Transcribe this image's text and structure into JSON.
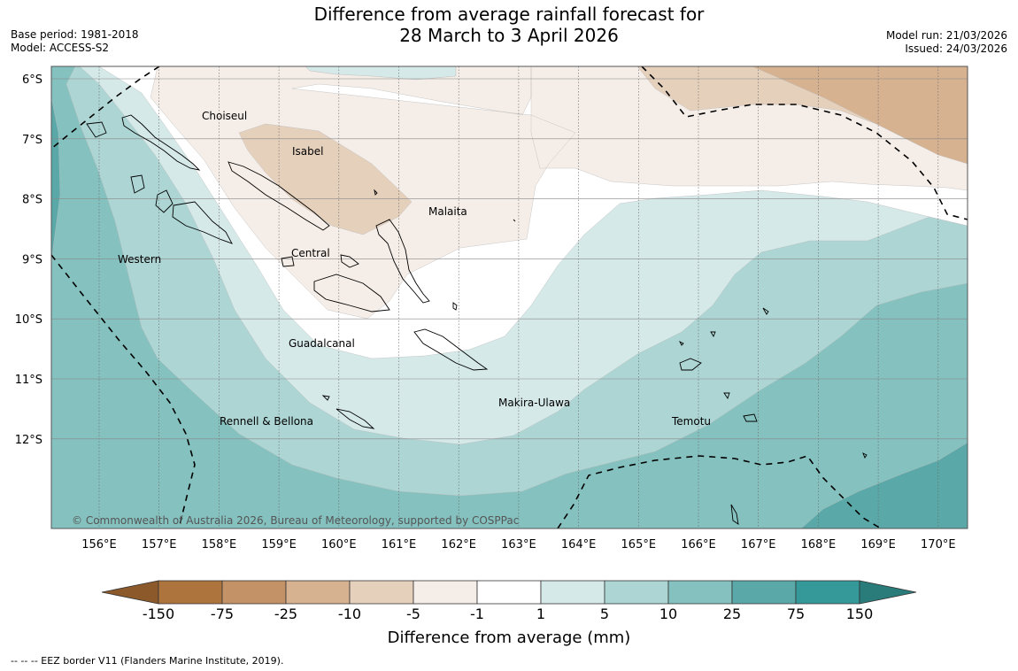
{
  "title_line1": "Difference from average rainfall forecast for",
  "title_line2": "28 March to 3 April 2026",
  "meta_left": [
    "Base period: 1981-2018",
    "Model: ACCESS-S2"
  ],
  "meta_right": [
    "Model run: 21/03/2026",
    "Issued: 24/03/2026"
  ],
  "lat_labels": [
    "6°S",
    "7°S",
    "8°S",
    "9°S",
    "10°S",
    "11°S",
    "12°S"
  ],
  "lon_labels": [
    "156°E",
    "157°E",
    "158°E",
    "159°E",
    "160°E",
    "161°E",
    "162°E",
    "163°E",
    "164°E",
    "165°E",
    "166°E",
    "167°E",
    "168°E",
    "169°E",
    "170°E"
  ],
  "regions": [
    {
      "name": "Choiseul"
    },
    {
      "name": "Isabel"
    },
    {
      "name": "Malaita"
    },
    {
      "name": "Western"
    },
    {
      "name": "Central"
    },
    {
      "name": "Guadalcanal"
    },
    {
      "name": "Makira-Ulawa"
    },
    {
      "name": "Temotu"
    },
    {
      "name": "Rennell & Bellona"
    }
  ],
  "copyright": "© Commonwealth of Australia 2026, Bureau of Meteorology, supported by COSPPac",
  "colorbar": {
    "ticks": [
      "-150",
      "-75",
      "-25",
      "-10",
      "-5",
      "-1",
      "1",
      "5",
      "10",
      "25",
      "75",
      "150"
    ],
    "colors": {
      "lt_neg150": "#8c5a2a",
      "neg150_75": "#ae743e",
      "neg75_25": "#c39367",
      "neg25_10": "#d6b291",
      "neg10_5": "#e5d0bc",
      "neg5_1": "#f5ede7",
      "neg1_1": "#ffffff",
      "p1_5": "#d5e9e9",
      "p5_10": "#acd5d4",
      "p10_25": "#84c1bf",
      "p25_75": "#5aa9a8",
      "p75_150": "#35999a",
      "gt150": "#2a7c7a"
    },
    "label": "Difference from average (mm)"
  },
  "footer": "--  --  -- EEZ border V11 (Flanders Marine Institute, 2019)."
}
